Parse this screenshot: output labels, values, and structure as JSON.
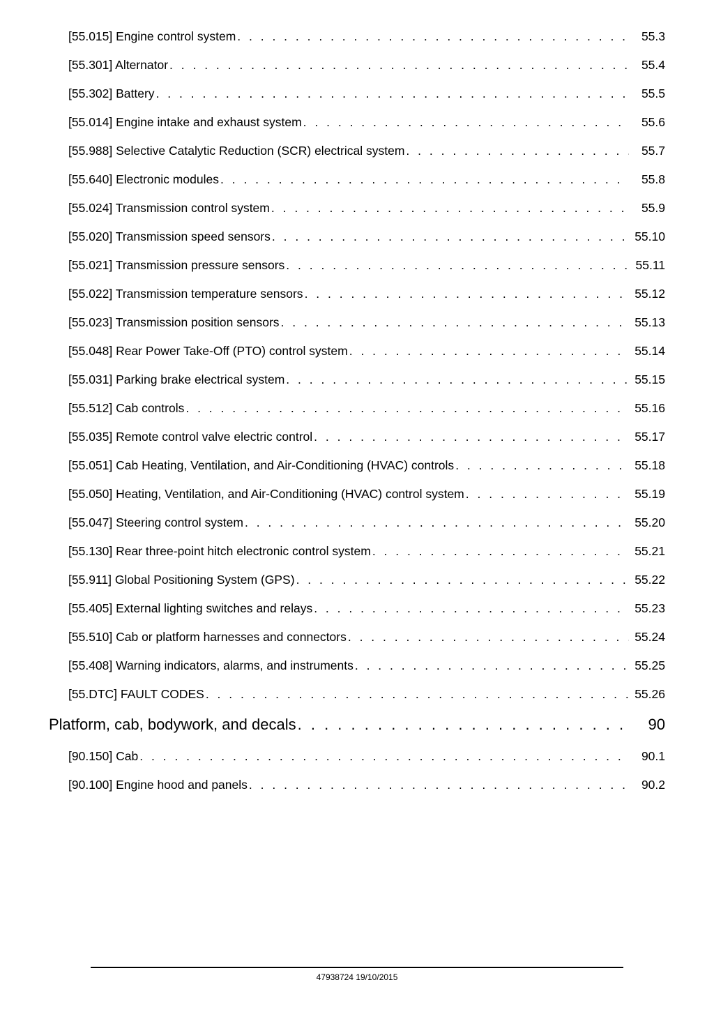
{
  "toc": [
    {
      "level": 2,
      "title": "[55.015] Engine control system",
      "page": "55.3"
    },
    {
      "level": 2,
      "title": "[55.301] Alternator",
      "page": "55.4"
    },
    {
      "level": 2,
      "title": "[55.302] Battery",
      "page": "55.5"
    },
    {
      "level": 2,
      "title": "[55.014] Engine intake and exhaust system",
      "page": "55.6"
    },
    {
      "level": 2,
      "title": "[55.988] Selective Catalytic Reduction (SCR) electrical system",
      "page": "55.7"
    },
    {
      "level": 2,
      "title": "[55.640] Electronic modules",
      "page": "55.8"
    },
    {
      "level": 2,
      "title": "[55.024] Transmission control system",
      "page": "55.9"
    },
    {
      "level": 2,
      "title": "[55.020] Transmission speed sensors",
      "page": "55.10"
    },
    {
      "level": 2,
      "title": "[55.021] Transmission pressure sensors",
      "page": "55.11"
    },
    {
      "level": 2,
      "title": "[55.022] Transmission temperature sensors",
      "page": "55.12"
    },
    {
      "level": 2,
      "title": "[55.023] Transmission position sensors",
      "page": "55.13"
    },
    {
      "level": 2,
      "title": "[55.048] Rear Power Take-Off (PTO) control system",
      "page": "55.14"
    },
    {
      "level": 2,
      "title": "[55.031] Parking brake electrical system",
      "page": "55.15"
    },
    {
      "level": 2,
      "title": "[55.512] Cab controls",
      "page": "55.16"
    },
    {
      "level": 2,
      "title": "[55.035] Remote control valve electric control",
      "page": "55.17"
    },
    {
      "level": 2,
      "title": "[55.051] Cab Heating, Ventilation, and Air-Conditioning (HVAC) controls",
      "page": "55.18"
    },
    {
      "level": 2,
      "title": "[55.050] Heating, Ventilation, and Air-Conditioning (HVAC) control system",
      "page": "55.19"
    },
    {
      "level": 2,
      "title": "[55.047] Steering control system",
      "page": "55.20"
    },
    {
      "level": 2,
      "title": "[55.130] Rear three-point hitch electronic control system",
      "page": "55.21"
    },
    {
      "level": 2,
      "title": "[55.911] Global Positioning System (GPS)",
      "page": "55.22"
    },
    {
      "level": 2,
      "title": "[55.405] External lighting switches and relays",
      "page": "55.23"
    },
    {
      "level": 2,
      "title": "[55.510] Cab or platform harnesses and connectors",
      "page": "55.24"
    },
    {
      "level": 2,
      "title": "[55.408] Warning indicators, alarms, and instruments",
      "page": "55.25"
    },
    {
      "level": 2,
      "title": "[55.DTC] FAULT CODES",
      "page": "55.26"
    },
    {
      "level": 1,
      "title": "Platform, cab, bodywork, and decals",
      "page": "90"
    },
    {
      "level": 2,
      "title": "[90.150] Cab",
      "page": "90.1"
    },
    {
      "level": 2,
      "title": "[90.100] Engine hood and panels",
      "page": "90.2"
    }
  ],
  "footer": {
    "docnum": "47938724",
    "date": "19/10/2015"
  },
  "leader_fill": ". . . . . . . . . . . . . . . . . . . . . . . . . . . . . . . . . . . . . . . . . . . . . . . . . . . . . . . . . . . . . . . . . . . . . . . . . . . . . . . . . . . . . . . . . . . . . . . . . . . . . . . . . . . . . . . . . . . . . . . ."
}
